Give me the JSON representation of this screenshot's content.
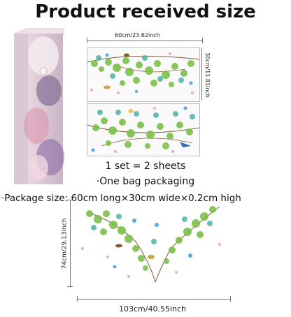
{
  "title": "Product received size",
  "sheet_width_label": "60cm/23.62inch",
  "sheet_height_label": "30cm/11.81inch",
  "sets_label": "1 set = 2 sheets",
  "bag_label": "·One bag packaging",
  "package_size_label": "·Package size: 60cm long×30cm wide×0.2cm high",
  "decal_height_label": "74cm/29.13inch",
  "decal_width_label": "103cm/40.55inch",
  "colors": {
    "leaf_green": "#7cc04a",
    "leaf_teal": "#4fb3a6",
    "butterfly_blue": "#5aa9e6",
    "petal_pink": "#f3a7c0"
  }
}
